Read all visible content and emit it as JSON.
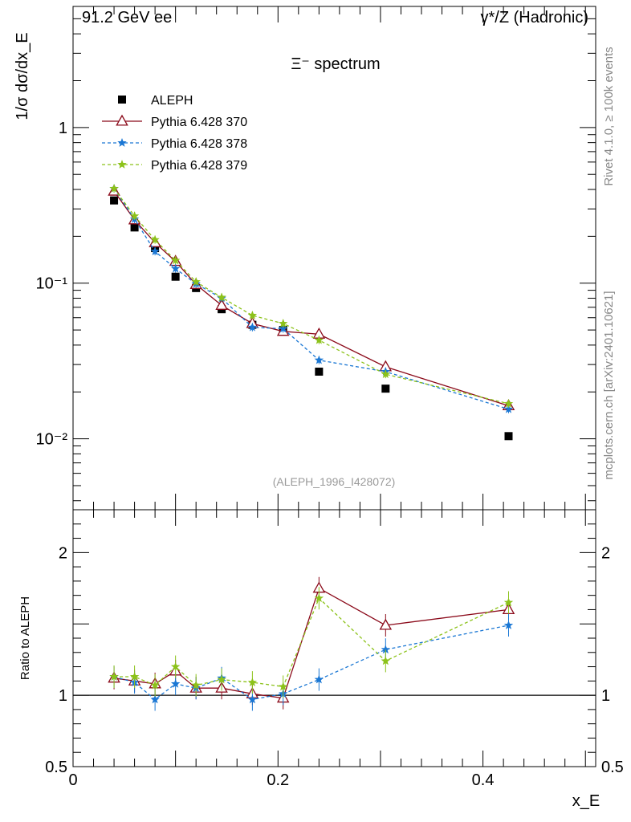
{
  "header": {
    "left": "91.2 GeV ee",
    "right": "γ*/Z (Hadronic)"
  },
  "side_text": {
    "rivet": "Rivet 4.1.0, ≥ 100k events",
    "mcplots": "mcplots.cern.ch [arXiv:2401.10621]"
  },
  "chart_data": [
    {
      "type": "line",
      "panel": "main",
      "title": "Ξ⁻ spectrum",
      "analysis_label": "(ALEPH_1996_I428072)",
      "ylabel": "1/σ dσ/dx_E",
      "yscale": "log",
      "ylim": [
        0.0035,
        6.0
      ],
      "xlim": [
        0,
        0.51
      ],
      "yticks": [
        {
          "v": 1,
          "label": "1"
        },
        {
          "v": 0.1,
          "label": "10⁻¹"
        },
        {
          "v": 0.01,
          "label": "10⁻²"
        }
      ],
      "x": [
        0.04,
        0.06,
        0.08,
        0.1,
        0.12,
        0.145,
        0.175,
        0.205,
        0.24,
        0.305,
        0.425
      ],
      "legend": "top-left",
      "series": [
        {
          "name": "ALEPH",
          "style": "data",
          "color": "#000000",
          "values": [
            0.34,
            0.228,
            0.168,
            0.11,
            0.093,
            0.068,
            0.054,
            0.05,
            0.027,
            0.021,
            0.0104
          ]
        },
        {
          "name": "Pythia 6.428 370",
          "style": "solid-triangle",
          "color": "#8b0a1a",
          "values": [
            0.39,
            0.255,
            0.182,
            0.138,
            0.098,
            0.072,
            0.055,
            0.049,
            0.047,
            0.029,
            0.0163
          ]
        },
        {
          "name": "Pythia 6.428 378",
          "style": "dashed-star",
          "color": "#1a77d4",
          "values": [
            0.405,
            0.258,
            0.16,
            0.124,
            0.099,
            0.08,
            0.052,
            0.051,
            0.032,
            0.027,
            0.0155
          ]
        },
        {
          "name": "Pythia 6.428 379",
          "style": "dashed-star",
          "color": "#8cc21a",
          "values": [
            0.405,
            0.27,
            0.19,
            0.14,
            0.102,
            0.081,
            0.062,
            0.055,
            0.043,
            0.026,
            0.0168
          ]
        }
      ]
    },
    {
      "type": "line",
      "panel": "ratio",
      "ylabel": "Ratio to ALEPH",
      "xlabel": "x_E",
      "ylim": [
        0.5,
        2.3
      ],
      "xlim": [
        0,
        0.51
      ],
      "yticks": [
        {
          "v": 0.5,
          "label": "0.5"
        },
        {
          "v": 1,
          "label": "1"
        },
        {
          "v": 2,
          "label": "2"
        }
      ],
      "xticks": [
        {
          "v": 0,
          "label": "0"
        },
        {
          "v": 0.2,
          "label": "0.2"
        },
        {
          "v": 0.4,
          "label": "0.4"
        }
      ],
      "x": [
        0.04,
        0.06,
        0.08,
        0.1,
        0.12,
        0.145,
        0.175,
        0.205,
        0.24,
        0.305,
        0.425
      ],
      "series": [
        {
          "name": "Pythia 6.428 370",
          "color": "#8b0a1a",
          "values": [
            1.12,
            1.1,
            1.08,
            1.17,
            1.05,
            1.05,
            1.01,
            0.98,
            1.75,
            1.49,
            1.6
          ]
        },
        {
          "name": "Pythia 6.428 378",
          "color": "#1a77d4",
          "values": [
            1.13,
            1.09,
            0.97,
            1.08,
            1.05,
            1.12,
            0.97,
            1.01,
            1.11,
            1.32,
            1.49
          ]
        },
        {
          "name": "Pythia 6.428 379",
          "color": "#8cc21a",
          "values": [
            1.13,
            1.13,
            1.07,
            1.2,
            1.07,
            1.11,
            1.09,
            1.06,
            1.68,
            1.24,
            1.65
          ]
        }
      ]
    }
  ]
}
